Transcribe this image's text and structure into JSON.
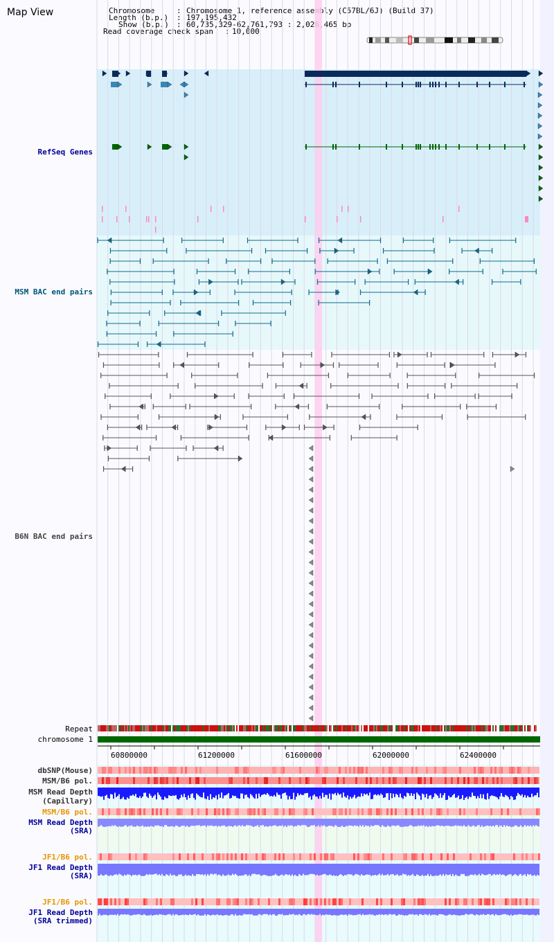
{
  "view_title": "Map View",
  "info": {
    "chromosome_label": "Chromosome",
    "chromosome_value": "Chromosome 1, reference assembly (C57BL/6J) (Build 37)",
    "length_label": "Length (b.p.)",
    "length_value": "197,195,432",
    "show_label": "Show (b.p.)",
    "show_value": "60,735,329-62,761,793 : 2,026,465 bp",
    "coverage_label": "Read coverage check span",
    "coverage_value": "10,000"
  },
  "labels": {
    "refseq": "RefSeq Genes",
    "msm_bac": "MSM BAC end pairs",
    "b6n_bac": "B6N BAC end pairs",
    "repeat": "Repeat",
    "chromosome": "chromosome 1",
    "dbsnp": "dbSNP(Mouse)",
    "msm_b6_pol_1": "MSM/B6 pol.",
    "msm_depth_cap_1": "MSM Read Depth",
    "msm_depth_cap_2": "(Capillary)",
    "msm_b6_pol_2": "MSM/B6 pol.",
    "msm_depth_sra_1": "MSM Read Depth",
    "msm_depth_sra_2": "(SRA)",
    "jf1_b6_pol_1": "JF1/B6 pol.",
    "jf1_depth_1": "JF1 Read Depth",
    "jf1_depth_2": "(SRA)",
    "jf1_b6_pol_2": "JF1/B6 pol.",
    "jf1_trim_1": "JF1 Read Depth",
    "jf1_trim_2": "(SRA trimmed)"
  },
  "axis": {
    "ticks": [
      "60800000",
      "61200000",
      "61600000",
      "62000000",
      "62400000"
    ]
  },
  "colors": {
    "refseq_label": "#000099",
    "msm_label": "#005577",
    "b6n_label": "#444444",
    "pol_label": "#e69500",
    "depth_label": "#000099",
    "highlight": "#ffccee",
    "gene_dark": "#0a2a5a",
    "gene_blue": "#3a87b5",
    "gene_green": "#006600",
    "msm_feature": "#0e6a8a",
    "b6n_feature": "#555555"
  }
}
